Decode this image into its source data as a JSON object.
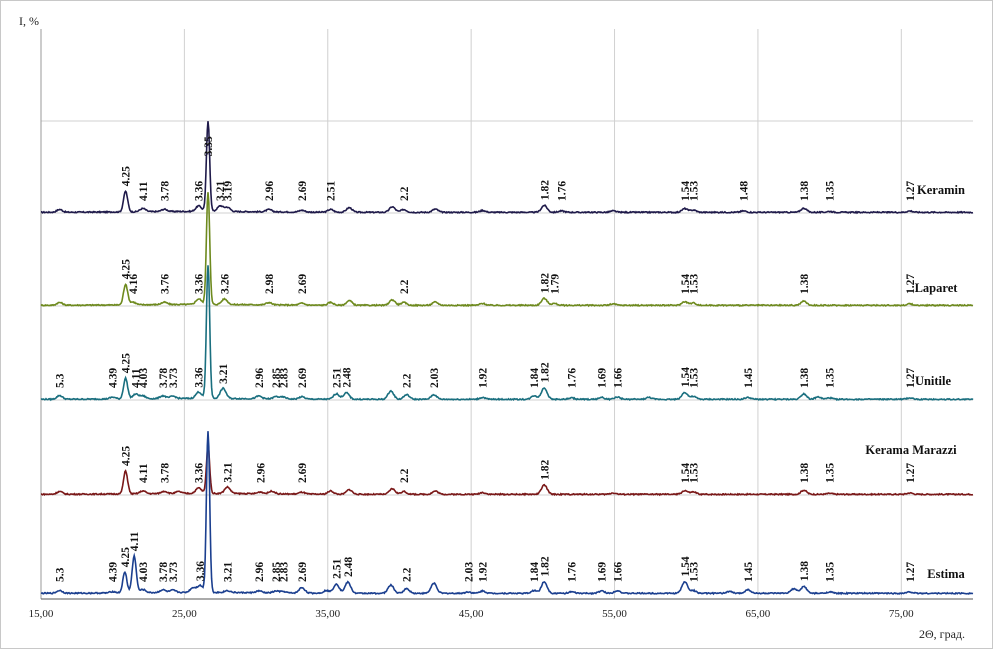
{
  "chart_data": {
    "type": "line",
    "title": "",
    "xlabel": "2Θ, град.",
    "ylabel": "I, %",
    "xlim": [
      15,
      80
    ],
    "x_ticks": [
      "15,00",
      "25,00",
      "35,00",
      "45,00",
      "55,00",
      "65,00",
      "75,00"
    ],
    "grid": "vertical and horizontal",
    "series": [
      {
        "name": "Keramin",
        "color": "#1f1a4a",
        "peaks": [
          {
            "x": 16.3,
            "h": 0.06,
            "label": ""
          },
          {
            "x": 20.9,
            "h": 0.45,
            "label": "4.25"
          },
          {
            "x": 22.1,
            "h": 0.07,
            "label": "4.11"
          },
          {
            "x": 23.6,
            "h": 0.05,
            "label": "3.78"
          },
          {
            "x": 26.0,
            "h": 0.12,
            "label": "3.36"
          },
          {
            "x": 26.65,
            "h": 1.95,
            "label": "3.35"
          },
          {
            "x": 27.5,
            "h": 0.12,
            "label": "3.21"
          },
          {
            "x": 28.0,
            "h": 0.09,
            "label": "3.19"
          },
          {
            "x": 30.9,
            "h": 0.05,
            "label": "2.96"
          },
          {
            "x": 33.2,
            "h": 0.04,
            "label": "2.69"
          },
          {
            "x": 35.2,
            "h": 0.06,
            "label": "2.51"
          },
          {
            "x": 36.5,
            "h": 0.1,
            "label": ""
          },
          {
            "x": 39.5,
            "h": 0.12,
            "label": ""
          },
          {
            "x": 40.3,
            "h": 0.06,
            "label": "2.2"
          },
          {
            "x": 42.5,
            "h": 0.07,
            "label": ""
          },
          {
            "x": 45.8,
            "h": 0.04,
            "label": ""
          },
          {
            "x": 50.1,
            "h": 0.15,
            "label": "1.82"
          },
          {
            "x": 51.3,
            "h": 0.03,
            "label": "1.76"
          },
          {
            "x": 54.9,
            "h": 0.03,
            "label": ""
          },
          {
            "x": 59.9,
            "h": 0.08,
            "label": "1.54"
          },
          {
            "x": 60.5,
            "h": 0.05,
            "label": "1.53"
          },
          {
            "x": 64.0,
            "h": 0.03,
            "label": "1.48"
          },
          {
            "x": 68.2,
            "h": 0.09,
            "label": "1.38"
          },
          {
            "x": 70.0,
            "h": 0.02,
            "label": "1.35"
          },
          {
            "x": 75.6,
            "h": 0.03,
            "label": "1.27"
          }
        ]
      },
      {
        "name": "Laparet",
        "color": "#6e8a1e",
        "peaks": [
          {
            "x": 16.3,
            "h": 0.06,
            "label": ""
          },
          {
            "x": 20.9,
            "h": 0.45,
            "label": "4.25"
          },
          {
            "x": 21.4,
            "h": 0.06,
            "label": "4.16"
          },
          {
            "x": 23.6,
            "h": 0.05,
            "label": "3.76"
          },
          {
            "x": 26.0,
            "h": 0.12,
            "label": "3.36"
          },
          {
            "x": 26.65,
            "h": 2.45,
            "label": ""
          },
          {
            "x": 27.8,
            "h": 0.12,
            "label": "3.26"
          },
          {
            "x": 30.9,
            "h": 0.05,
            "label": "2.98"
          },
          {
            "x": 33.2,
            "h": 0.04,
            "label": "2.69"
          },
          {
            "x": 35.2,
            "h": 0.06,
            "label": ""
          },
          {
            "x": 36.5,
            "h": 0.1,
            "label": ""
          },
          {
            "x": 39.5,
            "h": 0.12,
            "label": ""
          },
          {
            "x": 40.3,
            "h": 0.06,
            "label": "2.2"
          },
          {
            "x": 42.5,
            "h": 0.07,
            "label": ""
          },
          {
            "x": 45.8,
            "h": 0.04,
            "label": ""
          },
          {
            "x": 50.1,
            "h": 0.15,
            "label": "1.82"
          },
          {
            "x": 50.8,
            "h": 0.04,
            "label": "1.79"
          },
          {
            "x": 54.9,
            "h": 0.03,
            "label": ""
          },
          {
            "x": 59.9,
            "h": 0.08,
            "label": "1.54"
          },
          {
            "x": 60.5,
            "h": 0.05,
            "label": "1.53"
          },
          {
            "x": 68.2,
            "h": 0.09,
            "label": "1.38"
          },
          {
            "x": 75.6,
            "h": 0.03,
            "label": "1.27"
          }
        ]
      },
      {
        "name": "Unitile",
        "color": "#1a6f7f",
        "peaks": [
          {
            "x": 16.3,
            "h": 0.08,
            "label": "5.3"
          },
          {
            "x": 20.0,
            "h": 0.04,
            "label": "4.39"
          },
          {
            "x": 20.9,
            "h": 0.45,
            "label": "4.25"
          },
          {
            "x": 21.6,
            "h": 0.1,
            "label": "4.11"
          },
          {
            "x": 22.1,
            "h": 0.06,
            "label": "4.03"
          },
          {
            "x": 23.5,
            "h": 0.06,
            "label": "3.78"
          },
          {
            "x": 24.2,
            "h": 0.05,
            "label": "3.73"
          },
          {
            "x": 26.0,
            "h": 0.14,
            "label": "3.36"
          },
          {
            "x": 26.65,
            "h": 2.9,
            "label": ""
          },
          {
            "x": 27.7,
            "h": 0.22,
            "label": "3.21"
          },
          {
            "x": 30.2,
            "h": 0.06,
            "label": "2.96"
          },
          {
            "x": 31.4,
            "h": 0.05,
            "label": "2.85"
          },
          {
            "x": 31.9,
            "h": 0.04,
            "label": "2.83"
          },
          {
            "x": 33.2,
            "h": 0.05,
            "label": "2.69"
          },
          {
            "x": 35.6,
            "h": 0.12,
            "label": "2.51"
          },
          {
            "x": 36.3,
            "h": 0.14,
            "label": "2.48"
          },
          {
            "x": 39.4,
            "h": 0.18,
            "label": ""
          },
          {
            "x": 40.5,
            "h": 0.1,
            "label": "2.2"
          },
          {
            "x": 42.4,
            "h": 0.1,
            "label": "2.03"
          },
          {
            "x": 45.8,
            "h": 0.04,
            "label": "1.92"
          },
          {
            "x": 49.4,
            "h": 0.08,
            "label": "1.84"
          },
          {
            "x": 50.1,
            "h": 0.25,
            "label": "1.82"
          },
          {
            "x": 52.0,
            "h": 0.03,
            "label": "1.76"
          },
          {
            "x": 54.1,
            "h": 0.04,
            "label": "1.69"
          },
          {
            "x": 55.2,
            "h": 0.05,
            "label": "1.66"
          },
          {
            "x": 57.4,
            "h": 0.04,
            "label": ""
          },
          {
            "x": 59.9,
            "h": 0.15,
            "label": "1.54"
          },
          {
            "x": 60.5,
            "h": 0.06,
            "label": "1.53"
          },
          {
            "x": 64.3,
            "h": 0.04,
            "label": "1.45"
          },
          {
            "x": 68.2,
            "h": 0.12,
            "label": "1.38"
          },
          {
            "x": 69.2,
            "h": 0.05,
            "label": ""
          },
          {
            "x": 70.0,
            "h": 0.03,
            "label": "1.35"
          },
          {
            "x": 75.6,
            "h": 0.03,
            "label": "1.27"
          }
        ]
      },
      {
        "name": "Kerama Marazzi",
        "color": "#7a1818",
        "peaks": [
          {
            "x": 16.3,
            "h": 0.06,
            "label": ""
          },
          {
            "x": 20.9,
            "h": 0.5,
            "label": "4.25"
          },
          {
            "x": 22.1,
            "h": 0.06,
            "label": "4.11"
          },
          {
            "x": 23.6,
            "h": 0.05,
            "label": "3.78"
          },
          {
            "x": 24.6,
            "h": 0.04,
            "label": ""
          },
          {
            "x": 26.0,
            "h": 0.12,
            "label": "3.36"
          },
          {
            "x": 26.65,
            "h": 1.02,
            "label": ""
          },
          {
            "x": 28.0,
            "h": 0.14,
            "label": "3.21"
          },
          {
            "x": 30.3,
            "h": 0.04,
            "label": "2.96"
          },
          {
            "x": 31.1,
            "h": 0.06,
            "label": ""
          },
          {
            "x": 33.2,
            "h": 0.04,
            "label": "2.69"
          },
          {
            "x": 35.2,
            "h": 0.07,
            "label": ""
          },
          {
            "x": 36.5,
            "h": 0.1,
            "label": ""
          },
          {
            "x": 39.5,
            "h": 0.12,
            "label": ""
          },
          {
            "x": 40.3,
            "h": 0.06,
            "label": "2.2"
          },
          {
            "x": 42.5,
            "h": 0.07,
            "label": ""
          },
          {
            "x": 45.8,
            "h": 0.04,
            "label": ""
          },
          {
            "x": 50.1,
            "h": 0.2,
            "label": "1.82"
          },
          {
            "x": 54.9,
            "h": 0.03,
            "label": ""
          },
          {
            "x": 59.9,
            "h": 0.08,
            "label": "1.54"
          },
          {
            "x": 60.5,
            "h": 0.05,
            "label": "1.53"
          },
          {
            "x": 68.2,
            "h": 0.09,
            "label": "1.38"
          },
          {
            "x": 70.0,
            "h": 0.02,
            "label": "1.35"
          },
          {
            "x": 75.6,
            "h": 0.03,
            "label": "1.27"
          }
        ]
      },
      {
        "name": "Estima",
        "color": "#1b3f8f",
        "peaks": [
          {
            "x": 16.3,
            "h": 0.06,
            "label": "5.3"
          },
          {
            "x": 20.0,
            "h": 0.03,
            "label": "4.39"
          },
          {
            "x": 20.85,
            "h": 0.45,
            "label": "4.25"
          },
          {
            "x": 21.5,
            "h": 0.8,
            "label": "4.11"
          },
          {
            "x": 22.1,
            "h": 0.07,
            "label": "4.03"
          },
          {
            "x": 23.5,
            "h": 0.06,
            "label": "3.78"
          },
          {
            "x": 24.2,
            "h": 0.05,
            "label": "3.73"
          },
          {
            "x": 25.6,
            "h": 0.1,
            "label": ""
          },
          {
            "x": 26.1,
            "h": 0.15,
            "label": "3.36"
          },
          {
            "x": 26.65,
            "h": 3.5,
            "label": ""
          },
          {
            "x": 28.0,
            "h": 0.04,
            "label": "3.21"
          },
          {
            "x": 30.2,
            "h": 0.04,
            "label": "2.96"
          },
          {
            "x": 31.4,
            "h": 0.04,
            "label": "2.85"
          },
          {
            "x": 31.9,
            "h": 0.03,
            "label": "2.83"
          },
          {
            "x": 33.2,
            "h": 0.12,
            "label": "2.69"
          },
          {
            "x": 34.9,
            "h": 0.06,
            "label": ""
          },
          {
            "x": 35.6,
            "h": 0.2,
            "label": "2.51"
          },
          {
            "x": 36.4,
            "h": 0.24,
            "label": "2.48"
          },
          {
            "x": 39.4,
            "h": 0.18,
            "label": ""
          },
          {
            "x": 40.5,
            "h": 0.1,
            "label": "2.2"
          },
          {
            "x": 42.4,
            "h": 0.22,
            "label": ""
          },
          {
            "x": 44.8,
            "h": 0.03,
            "label": "2.03"
          },
          {
            "x": 45.8,
            "h": 0.05,
            "label": "1.92"
          },
          {
            "x": 49.4,
            "h": 0.06,
            "label": "1.84"
          },
          {
            "x": 50.1,
            "h": 0.25,
            "label": "1.82"
          },
          {
            "x": 52.0,
            "h": 0.03,
            "label": "1.76"
          },
          {
            "x": 54.1,
            "h": 0.05,
            "label": "1.69"
          },
          {
            "x": 55.2,
            "h": 0.06,
            "label": "1.66"
          },
          {
            "x": 59.9,
            "h": 0.25,
            "label": "1.54"
          },
          {
            "x": 60.5,
            "h": 0.06,
            "label": "1.53"
          },
          {
            "x": 63.0,
            "h": 0.04,
            "label": ""
          },
          {
            "x": 64.3,
            "h": 0.08,
            "label": "1.45"
          },
          {
            "x": 67.5,
            "h": 0.1,
            "label": ""
          },
          {
            "x": 68.2,
            "h": 0.15,
            "label": "1.38"
          },
          {
            "x": 70.0,
            "h": 0.03,
            "label": "1.35"
          },
          {
            "x": 75.6,
            "h": 0.03,
            "label": "1.27"
          }
        ]
      }
    ]
  }
}
